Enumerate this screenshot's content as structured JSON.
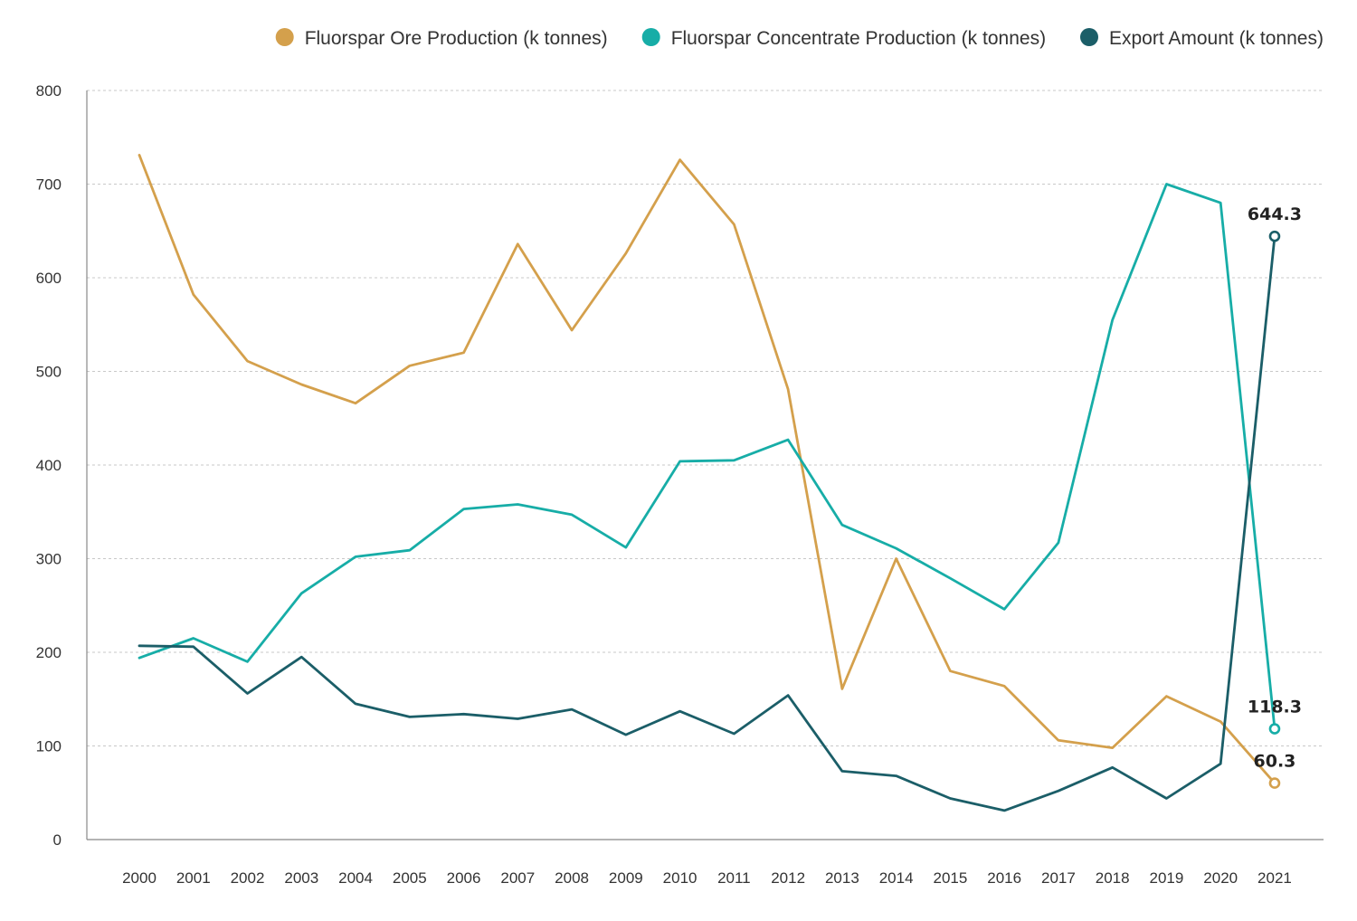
{
  "chart_data": {
    "type": "line",
    "title": "",
    "xlabel": "",
    "ylabel": "",
    "x": [
      "2000",
      "2001",
      "2002",
      "2003",
      "2004",
      "2005",
      "2006",
      "2007",
      "2008",
      "2009",
      "2010",
      "2011",
      "2012",
      "2013",
      "2014",
      "2015",
      "2016",
      "2017",
      "2018",
      "2019",
      "2020",
      "2021"
    ],
    "ylim": [
      0,
      800
    ],
    "yticks": [
      0,
      100,
      200,
      300,
      400,
      500,
      600,
      700,
      800
    ],
    "grid": true,
    "legend_position": "top-right",
    "series": [
      {
        "name": "Fluorspar Ore Production (k tonnes)",
        "color": "#D4A04C",
        "values": [
          731,
          582,
          511,
          486,
          466,
          506,
          520,
          636,
          544,
          626,
          726,
          657,
          481,
          161,
          300,
          180,
          164,
          106,
          98,
          153,
          126,
          60.3
        ],
        "end_label": "60.3"
      },
      {
        "name": "Fluorspar Concentrate Production (k tonnes)",
        "color": "#17ADA7",
        "values": [
          194,
          215,
          190,
          263,
          302,
          309,
          353,
          358,
          347,
          312,
          404,
          405,
          427,
          336,
          311,
          279,
          246,
          317,
          555,
          700,
          680,
          118.3
        ],
        "end_label": "118.3"
      },
      {
        "name": "Export Amount (k tonnes)",
        "color": "#1B5E68",
        "values": [
          207,
          206,
          156,
          195,
          145,
          131,
          134,
          129,
          139,
          112,
          137,
          113,
          154,
          73,
          68,
          44,
          31,
          52,
          77,
          44,
          81,
          644.3
        ],
        "end_label": "644.3"
      }
    ]
  }
}
